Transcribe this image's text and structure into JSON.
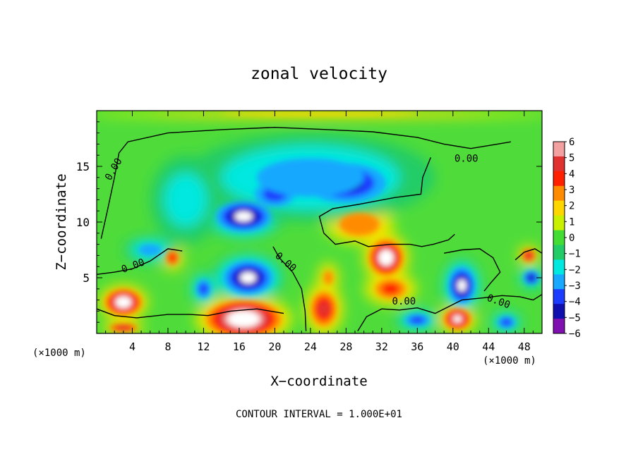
{
  "chart_data": {
    "type": "heatmap",
    "title": "zonal velocity",
    "xlabel": "X−coordinate",
    "ylabel": "Z−coordinate",
    "x_unit_left": "(×1000 m)",
    "x_unit_right": "(×1000 m)",
    "footer": "CONTOUR INTERVAL = 1.000E+01",
    "xlim": [
      0,
      50
    ],
    "ylim": [
      0,
      20
    ],
    "x_ticks": [
      4,
      8,
      12,
      16,
      20,
      24,
      28,
      32,
      36,
      40,
      44,
      48
    ],
    "y_ticks": [
      5,
      10,
      15
    ],
    "colorbar": {
      "ticks": [
        6,
        5,
        4,
        3,
        2,
        1,
        0,
        -1,
        -2,
        -3,
        -4,
        -5,
        -6
      ],
      "levels": [
        6,
        5,
        4,
        3,
        2,
        1,
        0,
        -1,
        -2,
        -3,
        -4,
        -5,
        -6
      ],
      "colors": [
        "#f2a0a0",
        "#e03030",
        "#ff2000",
        "#ff8c00",
        "#ffd700",
        "#c8f000",
        "#44dd33",
        "#22cc66",
        "#00e8e0",
        "#18a8ff",
        "#1c3cff",
        "#1010b0",
        "#8010b0"
      ]
    },
    "contour_label": "0.00",
    "contour_label_positions": [
      [
        2.2,
        14.6
      ],
      [
        4.2,
        5.8
      ],
      [
        21.0,
        6.2
      ],
      [
        34.5,
        2.6
      ],
      [
        41.5,
        15.4
      ],
      [
        45.0,
        2.6
      ]
    ],
    "features": [
      {
        "kind": "positive",
        "x": 16.5,
        "y": 1.3,
        "rx": 5.5,
        "ry": 2.2,
        "v": 8
      },
      {
        "kind": "positive",
        "x": 3.0,
        "y": 2.8,
        "rx": 2.8,
        "ry": 1.6,
        "v": 6.5
      },
      {
        "kind": "positive",
        "x": 8.5,
        "y": 6.8,
        "rx": 1.3,
        "ry": 1.2,
        "v": 4
      },
      {
        "kind": "positive",
        "x": 25.5,
        "y": 2.2,
        "rx": 2.2,
        "ry": 2.4,
        "v": 5
      },
      {
        "kind": "positive",
        "x": 32.5,
        "y": 6.8,
        "rx": 2.6,
        "ry": 2.2,
        "v": 6.5
      },
      {
        "kind": "positive",
        "x": 29.5,
        "y": 9.8,
        "rx": 4.0,
        "ry": 1.8,
        "v": 3.5
      },
      {
        "kind": "positive",
        "x": 33.0,
        "y": 4.0,
        "rx": 3.0,
        "ry": 1.5,
        "v": 4
      },
      {
        "kind": "positive",
        "x": 40.5,
        "y": 1.3,
        "rx": 2.2,
        "ry": 1.4,
        "v": 6
      },
      {
        "kind": "positive",
        "x": 48.5,
        "y": 7.0,
        "rx": 1.2,
        "ry": 0.9,
        "v": 5
      },
      {
        "kind": "positive",
        "x": 3.0,
        "y": 0.5,
        "rx": 2.5,
        "ry": 0.6,
        "v": 5
      },
      {
        "kind": "positive",
        "x": 26.0,
        "y": 5.0,
        "rx": 1.2,
        "ry": 1.4,
        "v": 3
      },
      {
        "kind": "negative",
        "x": 28.0,
        "y": 13.5,
        "rx": 7.0,
        "ry": 2.8,
        "v": -5
      },
      {
        "kind": "negative",
        "x": 16.5,
        "y": 10.5,
        "rx": 4.5,
        "ry": 2.0,
        "v": -6
      },
      {
        "kind": "negative",
        "x": 20.0,
        "y": 12.5,
        "rx": 4.0,
        "ry": 2.0,
        "v": -4
      },
      {
        "kind": "negative",
        "x": 17.0,
        "y": 5.0,
        "rx": 4.0,
        "ry": 2.2,
        "v": -6
      },
      {
        "kind": "negative",
        "x": 41.0,
        "y": 4.3,
        "rx": 2.2,
        "ry": 2.4,
        "v": -6
      },
      {
        "kind": "negative",
        "x": 48.8,
        "y": 5.0,
        "rx": 1.4,
        "ry": 1.0,
        "v": -5
      },
      {
        "kind": "negative",
        "x": 12.0,
        "y": 4.0,
        "rx": 1.5,
        "ry": 1.5,
        "v": -4
      },
      {
        "kind": "negative",
        "x": 6.0,
        "y": 7.5,
        "rx": 3.0,
        "ry": 1.2,
        "v": -3
      },
      {
        "kind": "negative",
        "x": 36.0,
        "y": 1.2,
        "rx": 2.5,
        "ry": 1.0,
        "v": -4
      },
      {
        "kind": "negative",
        "x": 46.0,
        "y": 1.0,
        "rx": 1.8,
        "ry": 1.0,
        "v": -4
      },
      {
        "kind": "negative",
        "x": 24.0,
        "y": 14.0,
        "rx": 14.0,
        "ry": 4.0,
        "v": -2.5
      },
      {
        "kind": "negative",
        "x": 10.0,
        "y": 12.0,
        "rx": 4.0,
        "ry": 4.0,
        "v": -2
      },
      {
        "kind": "positive",
        "x": 25.0,
        "y": 19.7,
        "rx": 26.0,
        "ry": 0.4,
        "v": 2.5
      }
    ]
  }
}
